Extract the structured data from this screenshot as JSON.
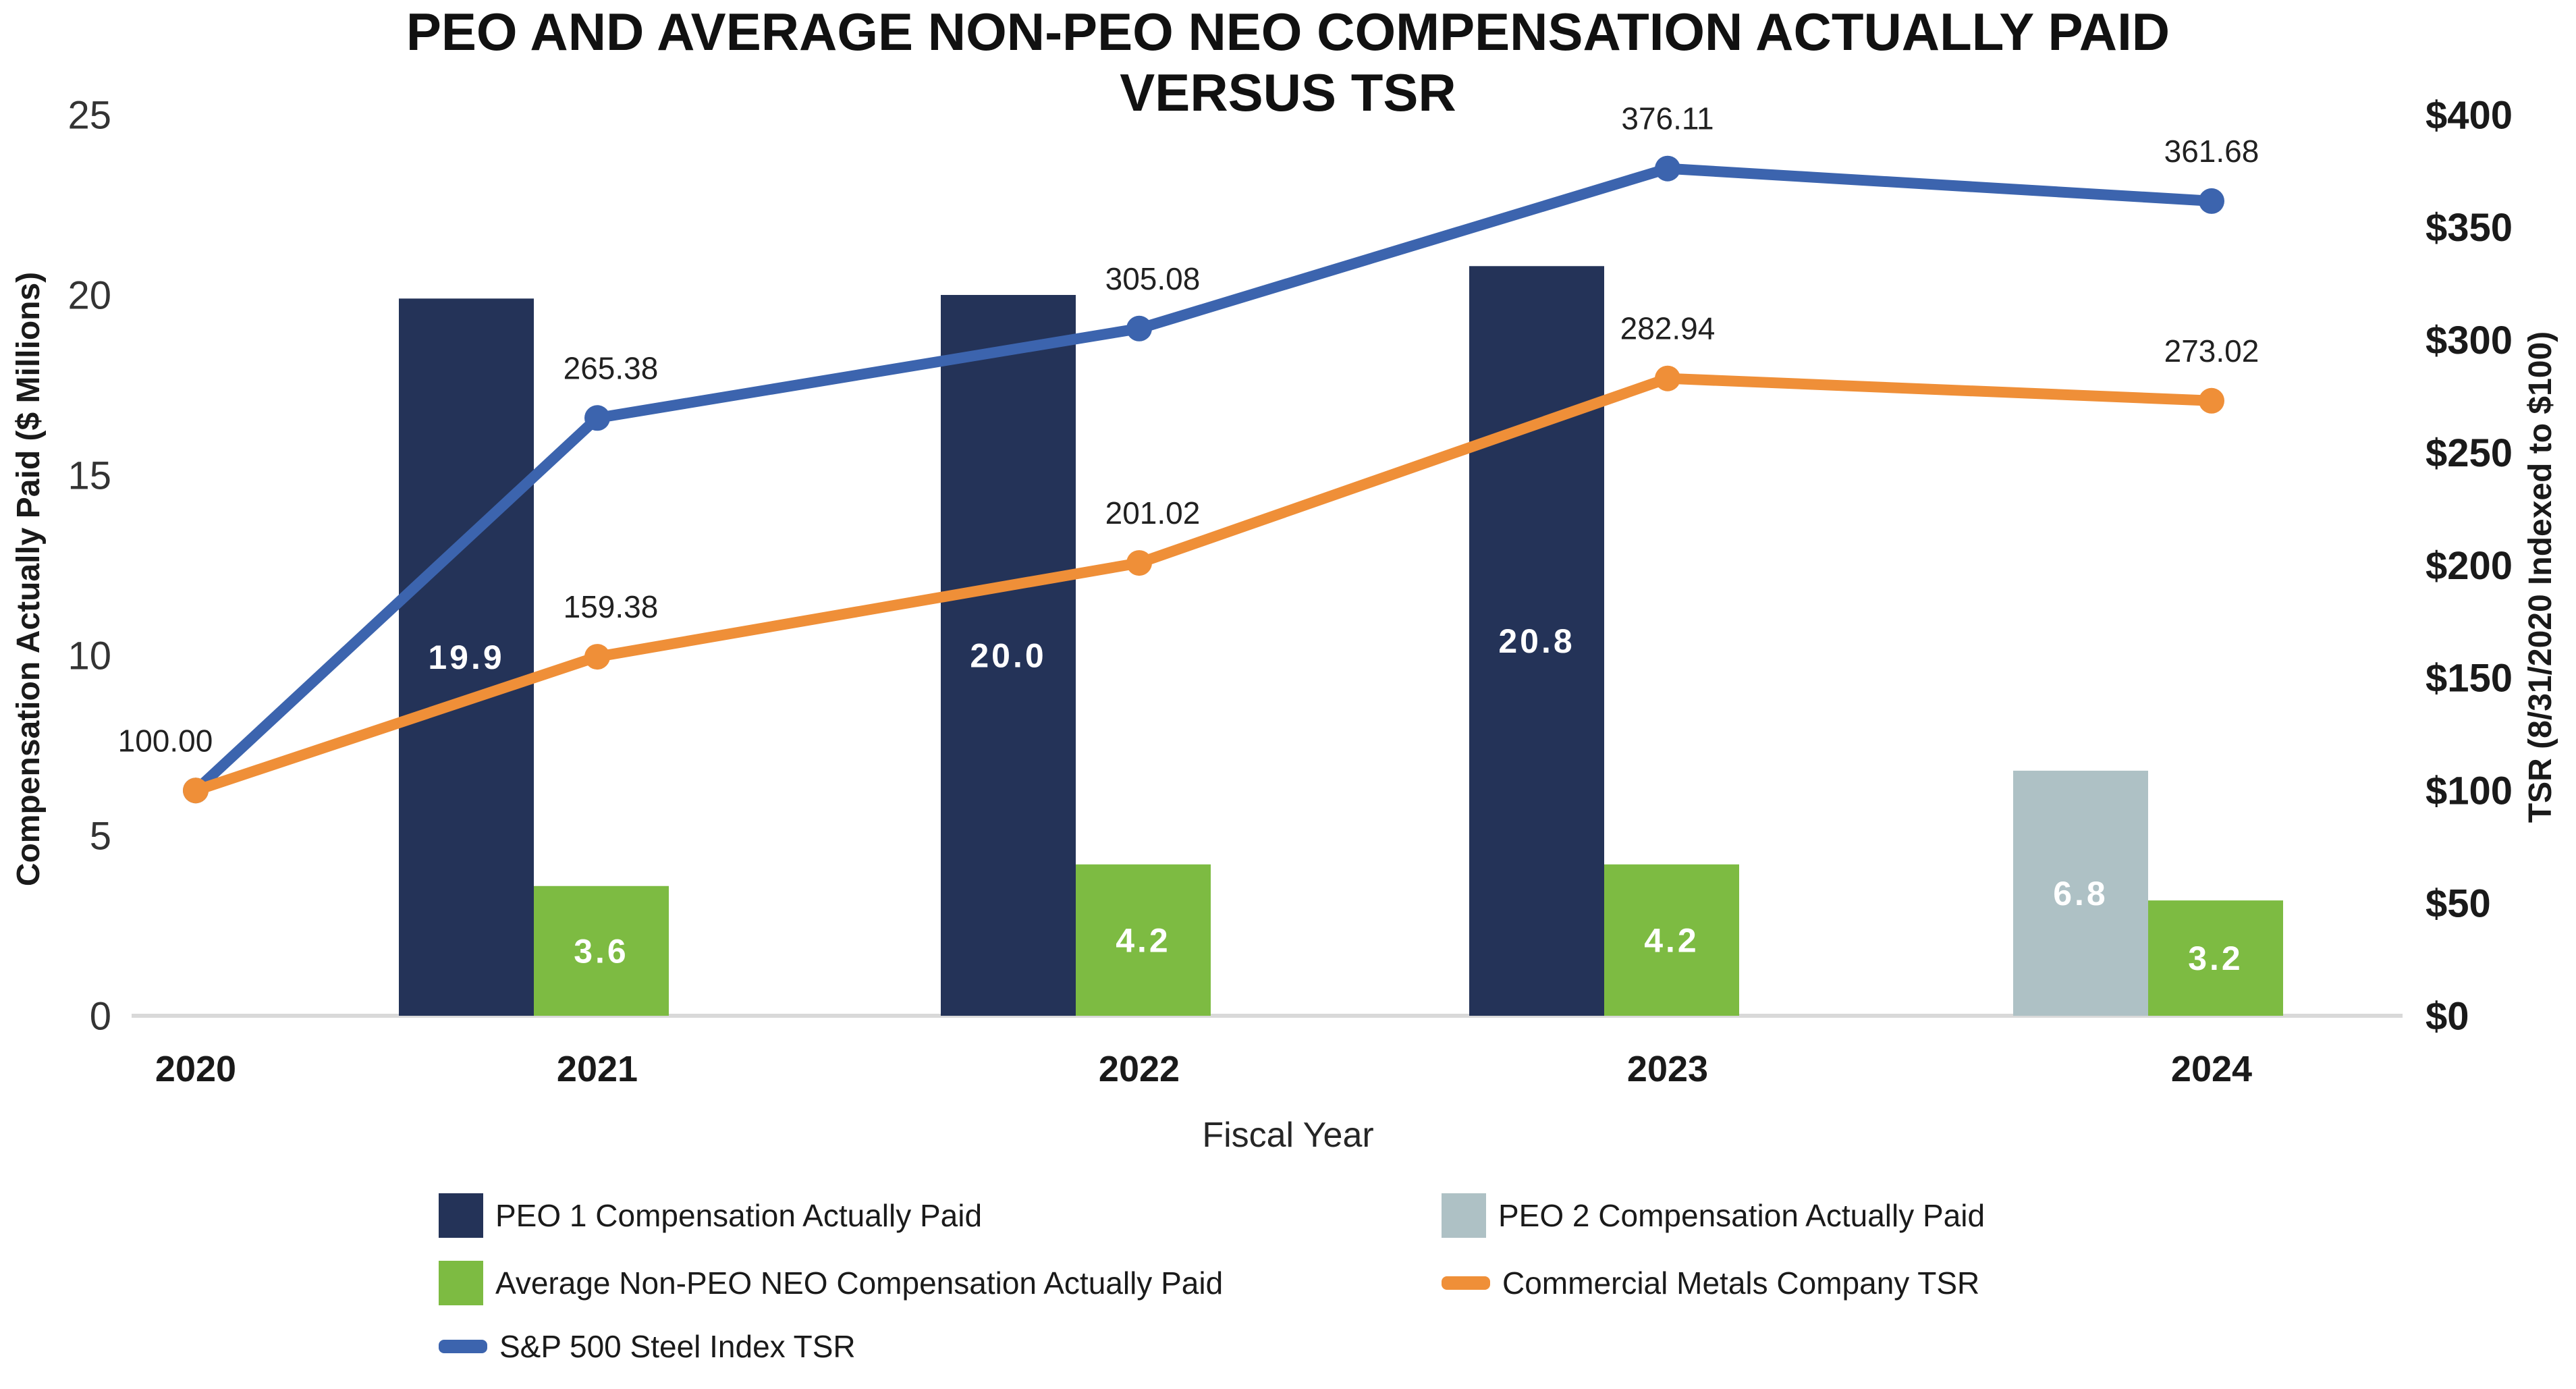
{
  "title": {
    "line1": "PEO AND AVERAGE NON-PEO NEO COMPENSATION ACTUALLY PAID",
    "line2": "VERSUS TSR"
  },
  "chart_data": {
    "type": "combo-bar-line",
    "categories": [
      "2020",
      "2021",
      "2022",
      "2023",
      "2024"
    ],
    "x_axis_title": "Fiscal Year",
    "left_axis": {
      "title": "Compensation Actually Paid ($ Millions)",
      "range": [
        0,
        25
      ],
      "tick_values": [
        0,
        5,
        10,
        15,
        20,
        25
      ],
      "tick_labels": [
        "0",
        "5",
        "10",
        "15",
        "20",
        "25"
      ]
    },
    "right_axis": {
      "title": "TSR (8/31/2020 Indexed to $100)",
      "range": [
        0,
        400
      ],
      "tick_values": [
        0,
        50,
        100,
        150,
        200,
        250,
        300,
        350,
        400
      ],
      "tick_labels": [
        "$0",
        "$50",
        "$100",
        "$150",
        "$200",
        "$250",
        "$300",
        "$350",
        "$400"
      ]
    },
    "grid": "off",
    "legend_position": "bottom",
    "bar_series": [
      {
        "name": "PEO 1 Compensation Actually Paid",
        "color": "#243358",
        "slot": 0,
        "values": [
          null,
          19.9,
          20.0,
          20.8,
          null
        ],
        "labels": [
          null,
          "19.9",
          "20.0",
          "20.8",
          null
        ]
      },
      {
        "name": "PEO 2 Compensation Actually Paid",
        "color": "#AEC1C5",
        "slot": 0,
        "values": [
          null,
          null,
          null,
          null,
          6.8
        ],
        "labels": [
          null,
          null,
          null,
          null,
          "6.8"
        ]
      },
      {
        "name": "Average Non-PEO NEO Compensation Actually Paid",
        "color": "#7DBB42",
        "slot": 1,
        "values": [
          null,
          3.6,
          4.2,
          4.2,
          3.2
        ],
        "labels": [
          null,
          "3.6",
          "4.2",
          "4.2",
          "3.2"
        ]
      }
    ],
    "line_series": [
      {
        "name": "S&P 500 Steel Index TSR",
        "color": "#3C64AE",
        "values": [
          100.0,
          265.38,
          305.08,
          376.11,
          361.68
        ],
        "labels": [
          null,
          "265.38",
          "305.08",
          "376.11",
          "361.68"
        ]
      },
      {
        "name": "Commercial Metals Company TSR",
        "color": "#EF8F38",
        "values": [
          100.0,
          159.38,
          201.02,
          282.94,
          273.02
        ],
        "labels": [
          "100.00",
          "159.38",
          "201.02",
          "282.94",
          "273.02"
        ]
      }
    ]
  },
  "legend": {
    "items": [
      {
        "label": "PEO 1 Compensation Actually Paid",
        "swatch": "square",
        "color": "#243358"
      },
      {
        "label": "PEO 2 Compensation Actually Paid",
        "swatch": "square",
        "color": "#AEC1C5"
      },
      {
        "label": "Average Non-PEO NEO Compensation Actually Paid",
        "swatch": "square",
        "color": "#7DBB42"
      },
      {
        "label": "Commercial Metals Company TSR",
        "swatch": "line",
        "color": "#EF8F38"
      },
      {
        "label": "S&P 500 Steel Index TSR",
        "swatch": "line",
        "color": "#3C64AE"
      }
    ]
  }
}
